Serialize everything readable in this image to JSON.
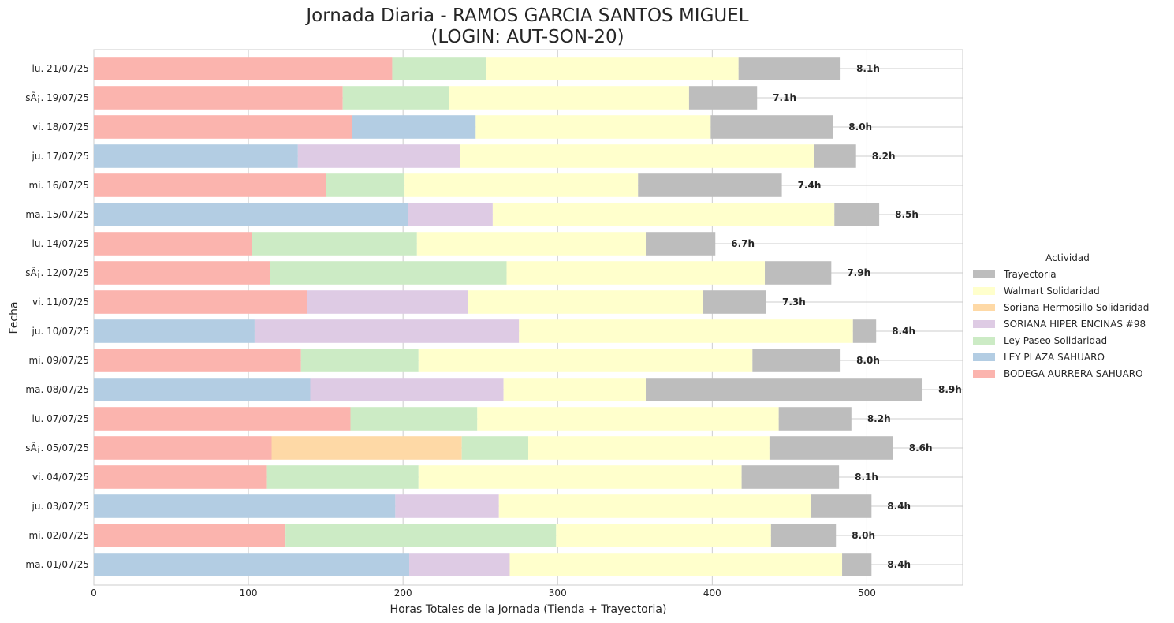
{
  "chart_data": {
    "type": "bar",
    "orientation": "horizontal",
    "stacked": true,
    "title": "Jornada Diaria - RAMOS GARCIA SANTOS MIGUEL",
    "subtitle": "(LOGIN: AUT-SON-20)",
    "xlabel": "Horas Totales de la Jornada (Tienda + Trayectoria)",
    "ylabel": "Fecha",
    "xlim": [
      0,
      562
    ],
    "xticks": [
      0,
      100,
      200,
      300,
      400,
      500
    ],
    "grid": true,
    "legend": {
      "title": "Actividad",
      "placement": "right",
      "order": [
        "Trayectoria",
        "Walmart Solidaridad",
        "Soriana Hermosillo Solidaridad",
        "SORIANA HIPER ENCINAS #98",
        "Ley Paseo Solidaridad",
        "LEY PLAZA SAHUARO",
        "BODEGA AURRERA SAHUARO"
      ]
    },
    "categories": [
      "lu. 21/07/25",
      "sÃ¡. 19/07/25",
      "vi. 18/07/25",
      "ju. 17/07/25",
      "mi. 16/07/25",
      "ma. 15/07/25",
      "lu. 14/07/25",
      "sÃ¡. 12/07/25",
      "vi. 11/07/25",
      "ju. 10/07/25",
      "mi. 09/07/25",
      "ma. 08/07/25",
      "lu. 07/07/25",
      "sÃ¡. 05/07/25",
      "vi. 04/07/25",
      "ju. 03/07/25",
      "mi. 02/07/25",
      "ma. 01/07/25"
    ],
    "series": [
      {
        "name": "BODEGA AURRERA SAHUARO",
        "color": "#fbb4ae",
        "values": [
          193,
          161,
          167,
          0,
          150,
          0,
          102,
          114,
          138,
          0,
          134,
          0,
          166,
          115,
          112,
          0,
          124,
          0
        ]
      },
      {
        "name": "LEY PLAZA SAHUARO",
        "color": "#b3cde3",
        "values": [
          0,
          0,
          80,
          132,
          0,
          203,
          0,
          0,
          0,
          104,
          0,
          140,
          0,
          0,
          0,
          195,
          0,
          204
        ]
      },
      {
        "name": "SORIANA HIPER ENCINAS #98",
        "color": "#decbe4",
        "values": [
          0,
          0,
          0,
          105,
          0,
          55,
          0,
          0,
          104,
          171,
          0,
          125,
          0,
          0,
          0,
          67,
          0,
          65
        ]
      },
      {
        "name": "Soriana Hermosillo Solidaridad",
        "color": "#fed9a6",
        "values": [
          0,
          0,
          0,
          0,
          0,
          0,
          0,
          0,
          0,
          0,
          0,
          0,
          0,
          123,
          0,
          0,
          0,
          0
        ]
      },
      {
        "name": "Ley Paseo Solidaridad",
        "color": "#ccebc5",
        "values": [
          61,
          69,
          0,
          0,
          51,
          0,
          107,
          153,
          0,
          0,
          76,
          0,
          82,
          43,
          98,
          0,
          175,
          0
        ]
      },
      {
        "name": "Walmart Solidaridad",
        "color": "#ffffcc",
        "values": [
          163,
          155,
          152,
          229,
          151,
          221,
          148,
          167,
          152,
          216,
          216,
          92,
          195,
          156,
          209,
          202,
          139,
          215
        ]
      },
      {
        "name": "Trayectoria",
        "color": "#bdbdbd",
        "values": [
          66,
          44,
          79,
          27,
          93,
          29,
          45,
          43,
          41,
          15,
          57,
          179,
          47,
          80,
          63,
          39,
          42,
          19
        ]
      }
    ],
    "totals_labels": [
      "8.1h",
      "7.1h",
      "8.0h",
      "8.2h",
      "7.4h",
      "8.5h",
      "6.7h",
      "7.9h",
      "7.3h",
      "8.4h",
      "8.0h",
      "8.9h",
      "8.2h",
      "8.6h",
      "8.1h",
      "8.4h",
      "8.0h",
      "8.4h"
    ]
  }
}
